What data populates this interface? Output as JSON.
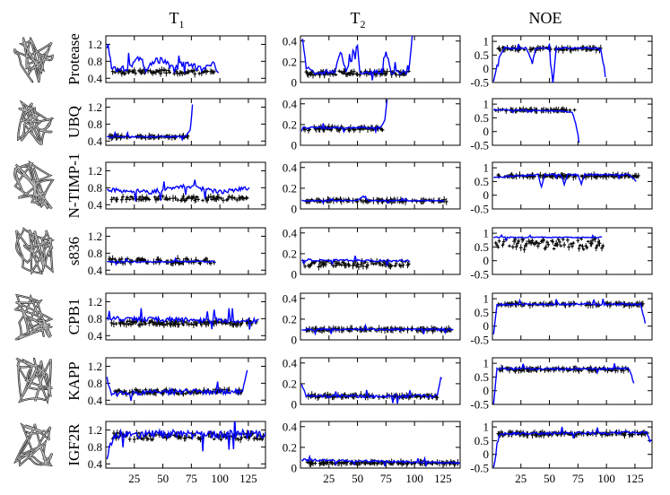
{
  "figure": {
    "column_titles": [
      {
        "main": "T",
        "sub": "1"
      },
      {
        "main": "T",
        "sub": "2"
      },
      {
        "main": "NOE",
        "sub": ""
      }
    ],
    "x_ticks": [
      25,
      50,
      75,
      100,
      125
    ],
    "series_colors": {
      "simulated": "#0000ff",
      "experimental": "#000000"
    },
    "row_icons": [
      "protease-structure-icon",
      "ubiquitin-structure-icon",
      "ntimp1-structure-icon",
      "s836-helix-bundle-icon",
      "cpb1-beta-barrel-icon",
      "kapp-beta-sheet-icon",
      "igf2r-beta-barrel-icon"
    ]
  },
  "chart_data": [
    {
      "type": "line",
      "row_label": "Protease",
      "column": "T1",
      "xlim": [
        0,
        140
      ],
      "ylim": [
        0.3,
        1.4
      ],
      "yticks": [
        0.4,
        0.8,
        1.2
      ],
      "n": 99,
      "series": [
        {
          "kind": "simulated",
          "anchors": [
            [
              2,
              1.15
            ],
            [
              5,
              0.7
            ],
            [
              10,
              0.6
            ],
            [
              20,
              0.65
            ],
            [
              30,
              0.9
            ],
            [
              35,
              0.6
            ],
            [
              45,
              0.85
            ],
            [
              55,
              0.75
            ],
            [
              60,
              0.6
            ],
            [
              70,
              0.8
            ],
            [
              75,
              0.7
            ],
            [
              85,
              0.6
            ],
            [
              95,
              0.75
            ],
            [
              98,
              0.55
            ]
          ],
          "base": 0.65,
          "noise": 0.08
        },
        {
          "kind": "experimental",
          "base": 0.55,
          "noise": 0.05,
          "from": 5,
          "to": 95
        }
      ]
    },
    {
      "type": "line",
      "row_label": "Protease",
      "column": "T2",
      "xlim": [
        0,
        140
      ],
      "ylim": [
        0,
        0.45
      ],
      "yticks": [
        0,
        0.2,
        0.4
      ],
      "n": 99,
      "series": [
        {
          "kind": "simulated",
          "anchors": [
            [
              2,
              0.4
            ],
            [
              5,
              0.15
            ],
            [
              10,
              0.1
            ],
            [
              30,
              0.1
            ],
            [
              35,
              0.3
            ],
            [
              40,
              0.1
            ],
            [
              50,
              0.35
            ],
            [
              52,
              0.1
            ],
            [
              70,
              0.1
            ],
            [
              75,
              0.3
            ],
            [
              80,
              0.1
            ],
            [
              95,
              0.1
            ],
            [
              98,
              0.45
            ]
          ],
          "base": 0.1,
          "noise": 0.02
        },
        {
          "kind": "experimental",
          "base": 0.09,
          "noise": 0.02,
          "from": 5,
          "to": 95
        }
      ]
    },
    {
      "type": "line",
      "row_label": "Protease",
      "column": "NOE",
      "xlim": [
        0,
        140
      ],
      "ylim": [
        -0.5,
        1.2
      ],
      "yticks": [
        -0.5,
        0,
        0.5,
        1
      ],
      "n": 99,
      "series": [
        {
          "kind": "simulated",
          "anchors": [
            [
              1,
              -0.5
            ],
            [
              5,
              0.3
            ],
            [
              10,
              0.75
            ],
            [
              30,
              0.75
            ],
            [
              35,
              0.2
            ],
            [
              38,
              0.75
            ],
            [
              50,
              0.75
            ],
            [
              53,
              -0.5
            ],
            [
              56,
              0.75
            ],
            [
              90,
              0.75
            ],
            [
              95,
              0.7
            ],
            [
              99,
              -0.3
            ]
          ],
          "base": 0.75,
          "noise": 0.04
        },
        {
          "kind": "experimental",
          "base": 0.72,
          "noise": 0.05,
          "from": 5,
          "to": 95
        }
      ]
    },
    {
      "type": "line",
      "row_label": "UBQ",
      "column": "T1",
      "xlim": [
        0,
        140
      ],
      "ylim": [
        0.3,
        1.4
      ],
      "yticks": [
        0.4,
        0.8,
        1.2
      ],
      "n": 76,
      "series": [
        {
          "kind": "simulated",
          "anchors": [
            [
              1,
              0.5
            ],
            [
              70,
              0.5
            ],
            [
              74,
              0.65
            ],
            [
              76,
              1.25
            ]
          ],
          "base": 0.5,
          "noise": 0.02
        },
        {
          "kind": "experimental",
          "base": 0.5,
          "noise": 0.02,
          "from": 3,
          "to": 72
        }
      ]
    },
    {
      "type": "line",
      "row_label": "UBQ",
      "column": "T2",
      "xlim": [
        0,
        140
      ],
      "ylim": [
        0,
        0.45
      ],
      "yticks": [
        0,
        0.2,
        0.4
      ],
      "n": 76,
      "series": [
        {
          "kind": "simulated",
          "anchors": [
            [
              1,
              0.17
            ],
            [
              70,
              0.17
            ],
            [
              74,
              0.25
            ],
            [
              76,
              0.45
            ]
          ],
          "base": 0.17,
          "noise": 0.01
        },
        {
          "kind": "experimental",
          "base": 0.16,
          "noise": 0.02,
          "from": 3,
          "to": 72
        }
      ]
    },
    {
      "type": "line",
      "row_label": "UBQ",
      "column": "NOE",
      "xlim": [
        0,
        140
      ],
      "ylim": [
        -0.5,
        1.2
      ],
      "yticks": [
        -0.5,
        0,
        0.5,
        1
      ],
      "n": 76,
      "series": [
        {
          "kind": "simulated",
          "anchors": [
            [
              1,
              0.8
            ],
            [
              60,
              0.75
            ],
            [
              70,
              0.7
            ],
            [
              73,
              0.3
            ],
            [
              76,
              -0.4
            ]
          ],
          "base": 0.78,
          "noise": 0.02
        },
        {
          "kind": "experimental",
          "base": 0.78,
          "noise": 0.03,
          "from": 3,
          "to": 72
        }
      ]
    },
    {
      "type": "line",
      "row_label": "N-TIMP-1",
      "column": "T1",
      "xlim": [
        0,
        140
      ],
      "ylim": [
        0.3,
        1.4
      ],
      "yticks": [
        0.4,
        0.8,
        1.2
      ],
      "n": 126,
      "series": [
        {
          "kind": "simulated",
          "anchors": [
            [
              1,
              0.75
            ],
            [
              40,
              0.7
            ],
            [
              60,
              0.8
            ],
            [
              70,
              0.85
            ],
            [
              100,
              0.7
            ],
            [
              126,
              0.8
            ]
          ],
          "base": 0.7,
          "noise": 0.05
        },
        {
          "kind": "experimental",
          "base": 0.55,
          "noise": 0.05,
          "from": 5,
          "to": 125
        }
      ]
    },
    {
      "type": "line",
      "row_label": "N-TIMP-1",
      "column": "T2",
      "xlim": [
        0,
        140
      ],
      "ylim": [
        0,
        0.45
      ],
      "yticks": [
        0,
        0.2,
        0.4
      ],
      "n": 126,
      "series": [
        {
          "kind": "simulated",
          "anchors": [
            [
              1,
              0.08
            ],
            [
              50,
              0.08
            ],
            [
              55,
              0.12
            ],
            [
              60,
              0.08
            ],
            [
              126,
              0.08
            ]
          ],
          "base": 0.08,
          "noise": 0.005
        },
        {
          "kind": "experimental",
          "base": 0.08,
          "noise": 0.01,
          "from": 5,
          "to": 128
        }
      ]
    },
    {
      "type": "line",
      "row_label": "N-TIMP-1",
      "column": "NOE",
      "xlim": [
        0,
        140
      ],
      "ylim": [
        -0.5,
        1.2
      ],
      "yticks": [
        -0.5,
        0,
        0.5,
        1
      ],
      "n": 126,
      "series": [
        {
          "kind": "simulated",
          "anchors": [
            [
              1,
              0.65
            ],
            [
              40,
              0.75
            ],
            [
              43,
              0.3
            ],
            [
              46,
              0.75
            ],
            [
              60,
              0.75
            ],
            [
              63,
              0.4
            ],
            [
              66,
              0.75
            ],
            [
              75,
              0.75
            ],
            [
              78,
              0.4
            ],
            [
              81,
              0.75
            ],
            [
              120,
              0.75
            ],
            [
              126,
              0.5
            ]
          ],
          "base": 0.75,
          "noise": 0.03
        },
        {
          "kind": "experimental",
          "base": 0.7,
          "noise": 0.04,
          "from": 5,
          "to": 128
        }
      ]
    },
    {
      "type": "line",
      "row_label": "s836",
      "column": "T1",
      "xlim": [
        0,
        140
      ],
      "ylim": [
        0.3,
        1.4
      ],
      "yticks": [
        0.4,
        0.8,
        1.2
      ],
      "n": 96,
      "series": [
        {
          "kind": "simulated",
          "anchors": [
            [
              1,
              0.6
            ],
            [
              96,
              0.6
            ]
          ],
          "base": 0.6,
          "noise": 0.02
        },
        {
          "kind": "experimental",
          "base": 0.62,
          "noise": 0.06,
          "from": 3,
          "to": 95
        }
      ]
    },
    {
      "type": "line",
      "row_label": "s836",
      "column": "T2",
      "xlim": [
        0,
        140
      ],
      "ylim": [
        0,
        0.45
      ],
      "yticks": [
        0,
        0.2,
        0.4
      ],
      "n": 96,
      "series": [
        {
          "kind": "simulated",
          "anchors": [
            [
              1,
              0.14
            ],
            [
              96,
              0.13
            ]
          ],
          "base": 0.14,
          "noise": 0.01
        },
        {
          "kind": "experimental",
          "base": 0.1,
          "noise": 0.03,
          "from": 3,
          "to": 98
        }
      ]
    },
    {
      "type": "line",
      "row_label": "s836",
      "column": "NOE",
      "xlim": [
        0,
        140
      ],
      "ylim": [
        -0.5,
        1.2
      ],
      "yticks": [
        -0.5,
        0,
        0.5,
        1
      ],
      "n": 96,
      "series": [
        {
          "kind": "simulated",
          "anchors": [
            [
              1,
              0.85
            ],
            [
              96,
              0.85
            ]
          ],
          "base": 0.85,
          "noise": 0.02
        },
        {
          "kind": "experimental",
          "base": 0.6,
          "noise": 0.2,
          "from": 3,
          "to": 98
        }
      ]
    },
    {
      "type": "line",
      "row_label": "CPB1",
      "column": "T1",
      "xlim": [
        0,
        140
      ],
      "ylim": [
        0.3,
        1.4
      ],
      "yticks": [
        0.4,
        0.8,
        1.2
      ],
      "n": 134,
      "series": [
        {
          "kind": "simulated",
          "anchors": [
            [
              1,
              0.8
            ],
            [
              134,
              0.75
            ],
            [
              137,
              1.0
            ]
          ],
          "base": 0.75,
          "noise": 0.06
        },
        {
          "kind": "experimental",
          "base": 0.7,
          "noise": 0.05,
          "from": 5,
          "to": 132
        }
      ]
    },
    {
      "type": "line",
      "row_label": "CPB1",
      "column": "T2",
      "xlim": [
        0,
        140
      ],
      "ylim": [
        0,
        0.45
      ],
      "yticks": [
        0,
        0.2,
        0.4
      ],
      "n": 134,
      "series": [
        {
          "kind": "simulated",
          "anchors": [
            [
              1,
              0.1
            ],
            [
              134,
              0.1
            ]
          ],
          "base": 0.1,
          "noise": 0.01
        },
        {
          "kind": "experimental",
          "base": 0.1,
          "noise": 0.01,
          "from": 5,
          "to": 132
        }
      ]
    },
    {
      "type": "line",
      "row_label": "CPB1",
      "column": "NOE",
      "xlim": [
        0,
        140
      ],
      "ylim": [
        -0.5,
        1.2
      ],
      "yticks": [
        -0.5,
        0,
        0.5,
        1
      ],
      "n": 134,
      "series": [
        {
          "kind": "simulated",
          "anchors": [
            [
              1,
              -0.3
            ],
            [
              4,
              0.8
            ],
            [
              130,
              0.8
            ],
            [
              134,
              0.1
            ]
          ],
          "base": 0.8,
          "noise": 0.04
        },
        {
          "kind": "experimental",
          "base": 0.8,
          "noise": 0.04,
          "from": 5,
          "to": 132
        }
      ]
    },
    {
      "type": "line",
      "row_label": "KAPP",
      "column": "T1",
      "xlim": [
        0,
        140
      ],
      "ylim": [
        0.3,
        1.4
      ],
      "yticks": [
        0.4,
        0.8,
        1.2
      ],
      "n": 124,
      "series": [
        {
          "kind": "simulated",
          "anchors": [
            [
              1,
              0.9
            ],
            [
              5,
              0.55
            ],
            [
              60,
              0.6
            ],
            [
              120,
              0.6
            ],
            [
              123,
              1.05
            ]
          ],
          "base": 0.6,
          "noise": 0.06
        },
        {
          "kind": "experimental",
          "base": 0.6,
          "noise": 0.05,
          "from": 5,
          "to": 120
        }
      ]
    },
    {
      "type": "line",
      "row_label": "KAPP",
      "column": "T2",
      "xlim": [
        0,
        140
      ],
      "ylim": [
        0,
        0.45
      ],
      "yticks": [
        0,
        0.2,
        0.4
      ],
      "n": 124,
      "series": [
        {
          "kind": "simulated",
          "anchors": [
            [
              1,
              0.2
            ],
            [
              5,
              0.08
            ],
            [
              120,
              0.08
            ],
            [
              123,
              0.25
            ]
          ],
          "base": 0.08,
          "noise": 0.015
        },
        {
          "kind": "experimental",
          "base": 0.08,
          "noise": 0.015,
          "from": 5,
          "to": 120
        }
      ]
    },
    {
      "type": "line",
      "row_label": "KAPP",
      "column": "NOE",
      "xlim": [
        0,
        140
      ],
      "ylim": [
        -0.5,
        1.2
      ],
      "yticks": [
        -0.5,
        0,
        0.5,
        1
      ],
      "n": 124,
      "series": [
        {
          "kind": "simulated",
          "anchors": [
            [
              1,
              -0.5
            ],
            [
              4,
              0.8
            ],
            [
              120,
              0.8
            ],
            [
              124,
              0.3
            ]
          ],
          "base": 0.8,
          "noise": 0.04
        },
        {
          "kind": "experimental",
          "base": 0.78,
          "noise": 0.05,
          "from": 5,
          "to": 120
        }
      ]
    },
    {
      "type": "line",
      "row_label": "IGF2R",
      "column": "T1",
      "xlim": [
        0,
        140
      ],
      "ylim": [
        0.3,
        1.4
      ],
      "yticks": [
        0.4,
        0.8,
        1.2
      ],
      "n": 140,
      "series": [
        {
          "kind": "simulated",
          "anchors": [
            [
              1,
              0.6
            ],
            [
              8,
              1.1
            ],
            [
              140,
              1.1
            ]
          ],
          "base": 1.1,
          "noise": 0.1
        },
        {
          "kind": "experimental",
          "base": 1.05,
          "noise": 0.08,
          "from": 5,
          "to": 138
        }
      ]
    },
    {
      "type": "line",
      "row_label": "IGF2R",
      "column": "T2",
      "xlim": [
        0,
        140
      ],
      "ylim": [
        0,
        0.45
      ],
      "yticks": [
        0,
        0.2,
        0.4
      ],
      "n": 140,
      "series": [
        {
          "kind": "simulated",
          "anchors": [
            [
              1,
              0.08
            ],
            [
              140,
              0.05
            ]
          ],
          "base": 0.05,
          "noise": 0.01
        },
        {
          "kind": "experimental",
          "base": 0.05,
          "noise": 0.01,
          "from": 5,
          "to": 138
        }
      ]
    },
    {
      "type": "line",
      "row_label": "IGF2R",
      "column": "NOE",
      "xlim": [
        0,
        140
      ],
      "ylim": [
        -0.5,
        1.2
      ],
      "yticks": [
        -0.5,
        0,
        0.5,
        1
      ],
      "n": 140,
      "series": [
        {
          "kind": "simulated",
          "anchors": [
            [
              1,
              -0.5
            ],
            [
              6,
              0.75
            ],
            [
              135,
              0.8
            ],
            [
              138,
              0.5
            ]
          ],
          "base": 0.75,
          "noise": 0.05
        },
        {
          "kind": "experimental",
          "base": 0.75,
          "noise": 0.05,
          "from": 5,
          "to": 138
        }
      ]
    }
  ]
}
